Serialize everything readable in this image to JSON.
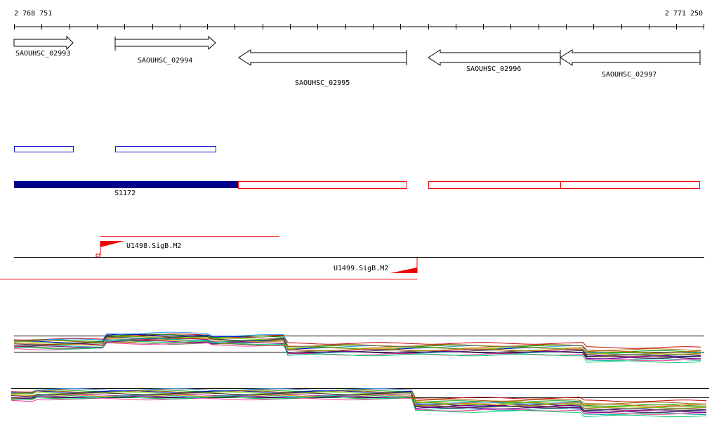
{
  "ruler": {
    "start": "2 768 751",
    "end": "2 771 250"
  },
  "genes": [
    {
      "label": "SAOUHSC_02993"
    },
    {
      "label": "SAOUHSC_02994"
    },
    {
      "label": "SAOUHSC_02995"
    },
    {
      "label": "SAOUHSC_02996"
    },
    {
      "label": "SAOUHSC_02997"
    }
  ],
  "region": {
    "label": "S1172"
  },
  "promoters": [
    {
      "label": "U1498.SigB.M2"
    },
    {
      "label": "U1499.SigB.M2"
    }
  ]
}
